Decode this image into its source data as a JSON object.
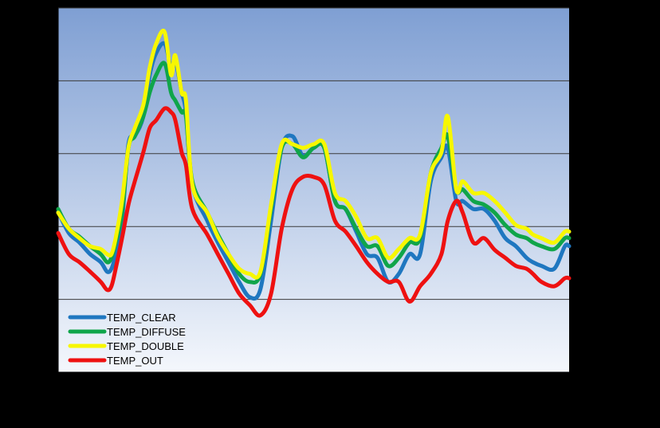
{
  "chart_data": {
    "type": "line",
    "title": "",
    "xlabel": "",
    "ylabel": "",
    "grid": true,
    "legend_position": "bottom-left",
    "ylim": [
      0,
      5
    ],
    "xlim": [
      0,
      24
    ],
    "colors": {
      "page_background": "#000000",
      "plot_background_top": "#7f9fd3",
      "plot_background_bottom": "#f4f7fc",
      "gridline": "#3b3b3b",
      "axis": "#000000"
    },
    "series": [
      {
        "name": "TEMP_CLEAR",
        "color": "#1f77c0",
        "points": [
          [
            0,
            2.2
          ],
          [
            0.5,
            1.91
          ],
          [
            1,
            1.78
          ],
          [
            1.5,
            1.62
          ],
          [
            2,
            1.51
          ],
          [
            2.3,
            1.38
          ],
          [
            2.5,
            1.42
          ],
          [
            2.7,
            1.62
          ],
          [
            3,
            2.08
          ],
          [
            3.3,
            3.13
          ],
          [
            3.6,
            3.24
          ],
          [
            4,
            3.51
          ],
          [
            4.3,
            4.08
          ],
          [
            4.6,
            4.38
          ],
          [
            5,
            4.51
          ],
          [
            5.3,
            4.18
          ],
          [
            5.5,
            4.28
          ],
          [
            5.8,
            3.84
          ],
          [
            6,
            3.57
          ],
          [
            6.3,
            2.57
          ],
          [
            7,
            2.08
          ],
          [
            7.5,
            1.78
          ],
          [
            8,
            1.51
          ],
          [
            8.5,
            1.24
          ],
          [
            9,
            1.03
          ],
          [
            9.5,
            1.14
          ],
          [
            10,
            2.08
          ],
          [
            10.5,
            3.08
          ],
          [
            11,
            3.24
          ],
          [
            11.5,
            2.97
          ],
          [
            12,
            3.08
          ],
          [
            12.5,
            3.08
          ],
          [
            13,
            2.35
          ],
          [
            13.5,
            2.24
          ],
          [
            14,
            1.93
          ],
          [
            14.5,
            1.62
          ],
          [
            15,
            1.57
          ],
          [
            15.5,
            1.24
          ],
          [
            16,
            1.35
          ],
          [
            16.5,
            1.62
          ],
          [
            17,
            1.62
          ],
          [
            17.5,
            2.62
          ],
          [
            18,
            2.95
          ],
          [
            18.3,
            3.08
          ],
          [
            18.7,
            2.35
          ],
          [
            19,
            2.35
          ],
          [
            19.5,
            2.24
          ],
          [
            20,
            2.24
          ],
          [
            20.5,
            2.08
          ],
          [
            21,
            1.84
          ],
          [
            21.5,
            1.73
          ],
          [
            22,
            1.57
          ],
          [
            22.3,
            1.51
          ],
          [
            22.7,
            1.46
          ],
          [
            23.3,
            1.42
          ],
          [
            23.8,
            1.73
          ],
          [
            24,
            1.73
          ]
        ]
      },
      {
        "name": "TEMP_DIFFUSE",
        "color": "#10a54a",
        "points": [
          [
            0,
            2.24
          ],
          [
            0.5,
            1.97
          ],
          [
            1,
            1.86
          ],
          [
            1.5,
            1.73
          ],
          [
            2,
            1.62
          ],
          [
            2.3,
            1.51
          ],
          [
            2.5,
            1.57
          ],
          [
            2.7,
            1.78
          ],
          [
            3,
            2.19
          ],
          [
            3.3,
            3.08
          ],
          [
            3.6,
            3.24
          ],
          [
            4,
            3.51
          ],
          [
            4.3,
            3.84
          ],
          [
            4.6,
            4.08
          ],
          [
            5,
            4.24
          ],
          [
            5.3,
            3.84
          ],
          [
            5.5,
            3.73
          ],
          [
            5.8,
            3.57
          ],
          [
            6,
            3.51
          ],
          [
            6.3,
            2.62
          ],
          [
            7,
            2.19
          ],
          [
            7.5,
            1.89
          ],
          [
            8,
            1.62
          ],
          [
            8.5,
            1.35
          ],
          [
            9,
            1.24
          ],
          [
            9.5,
            1.35
          ],
          [
            10,
            2.24
          ],
          [
            10.5,
            3.08
          ],
          [
            11,
            3.13
          ],
          [
            11.5,
            2.95
          ],
          [
            12,
            3.08
          ],
          [
            12.5,
            3.08
          ],
          [
            13,
            2.35
          ],
          [
            13.5,
            2.24
          ],
          [
            14,
            1.97
          ],
          [
            14.5,
            1.73
          ],
          [
            15,
            1.73
          ],
          [
            15.5,
            1.46
          ],
          [
            16,
            1.57
          ],
          [
            16.5,
            1.78
          ],
          [
            17,
            1.84
          ],
          [
            17.5,
            2.73
          ],
          [
            18,
            3.08
          ],
          [
            18.3,
            3.24
          ],
          [
            18.7,
            2.51
          ],
          [
            19,
            2.51
          ],
          [
            19.5,
            2.35
          ],
          [
            20,
            2.3
          ],
          [
            20.5,
            2.19
          ],
          [
            21,
            2.02
          ],
          [
            21.5,
            1.89
          ],
          [
            22,
            1.84
          ],
          [
            22.3,
            1.78
          ],
          [
            22.7,
            1.73
          ],
          [
            23.3,
            1.69
          ],
          [
            23.8,
            1.84
          ],
          [
            24,
            1.84
          ]
        ]
      },
      {
        "name": "TEMP_DOUBLE",
        "color": "#f7f700",
        "points": [
          [
            0,
            2.19
          ],
          [
            0.5,
            1.97
          ],
          [
            1,
            1.84
          ],
          [
            1.5,
            1.73
          ],
          [
            2,
            1.69
          ],
          [
            2.3,
            1.62
          ],
          [
            2.5,
            1.62
          ],
          [
            2.7,
            1.84
          ],
          [
            3,
            2.35
          ],
          [
            3.3,
            3.08
          ],
          [
            3.6,
            3.35
          ],
          [
            4,
            3.67
          ],
          [
            4.3,
            4.18
          ],
          [
            4.6,
            4.51
          ],
          [
            5,
            4.67
          ],
          [
            5.3,
            4.08
          ],
          [
            5.5,
            4.35
          ],
          [
            5.8,
            3.84
          ],
          [
            6,
            3.73
          ],
          [
            6.3,
            2.57
          ],
          [
            7,
            2.19
          ],
          [
            7.5,
            1.86
          ],
          [
            8,
            1.62
          ],
          [
            8.5,
            1.42
          ],
          [
            9,
            1.35
          ],
          [
            9.5,
            1.38
          ],
          [
            10,
            2.3
          ],
          [
            10.5,
            3.13
          ],
          [
            11,
            3.13
          ],
          [
            11.5,
            3.08
          ],
          [
            12,
            3.13
          ],
          [
            12.5,
            3.13
          ],
          [
            13,
            2.46
          ],
          [
            13.5,
            2.35
          ],
          [
            14,
            2.13
          ],
          [
            14.5,
            1.84
          ],
          [
            15,
            1.84
          ],
          [
            15.5,
            1.57
          ],
          [
            16,
            1.69
          ],
          [
            16.5,
            1.84
          ],
          [
            17,
            1.89
          ],
          [
            17.5,
            2.73
          ],
          [
            18,
            3.02
          ],
          [
            18.3,
            3.51
          ],
          [
            18.7,
            2.51
          ],
          [
            19,
            2.62
          ],
          [
            19.5,
            2.46
          ],
          [
            20,
            2.46
          ],
          [
            20.5,
            2.35
          ],
          [
            21,
            2.19
          ],
          [
            21.5,
            2.02
          ],
          [
            22,
            1.97
          ],
          [
            22.3,
            1.89
          ],
          [
            22.7,
            1.84
          ],
          [
            23.3,
            1.78
          ],
          [
            23.8,
            1.93
          ],
          [
            24,
            1.93
          ]
        ]
      },
      {
        "name": "TEMP_OUT",
        "color": "#ee1111",
        "points": [
          [
            0,
            1.91
          ],
          [
            0.5,
            1.62
          ],
          [
            1,
            1.51
          ],
          [
            1.5,
            1.38
          ],
          [
            2,
            1.24
          ],
          [
            2.3,
            1.13
          ],
          [
            2.5,
            1.18
          ],
          [
            2.7,
            1.42
          ],
          [
            3,
            1.84
          ],
          [
            3.3,
            2.3
          ],
          [
            3.6,
            2.62
          ],
          [
            4,
            3.02
          ],
          [
            4.3,
            3.35
          ],
          [
            4.6,
            3.46
          ],
          [
            5,
            3.62
          ],
          [
            5.3,
            3.57
          ],
          [
            5.5,
            3.46
          ],
          [
            5.8,
            3.02
          ],
          [
            6,
            2.84
          ],
          [
            6.3,
            2.24
          ],
          [
            7,
            1.89
          ],
          [
            7.5,
            1.62
          ],
          [
            8,
            1.35
          ],
          [
            8.5,
            1.08
          ],
          [
            9,
            0.92
          ],
          [
            9.5,
            0.78
          ],
          [
            10,
            1.08
          ],
          [
            10.5,
            1.97
          ],
          [
            11,
            2.51
          ],
          [
            11.5,
            2.68
          ],
          [
            12,
            2.68
          ],
          [
            12.5,
            2.57
          ],
          [
            13,
            2.08
          ],
          [
            13.5,
            1.93
          ],
          [
            14,
            1.73
          ],
          [
            14.5,
            1.51
          ],
          [
            15,
            1.35
          ],
          [
            15.5,
            1.24
          ],
          [
            16,
            1.24
          ],
          [
            16.5,
            0.97
          ],
          [
            17,
            1.18
          ],
          [
            17.5,
            1.35
          ],
          [
            18,
            1.62
          ],
          [
            18.3,
            2.08
          ],
          [
            18.7,
            2.35
          ],
          [
            19,
            2.19
          ],
          [
            19.5,
            1.78
          ],
          [
            20,
            1.84
          ],
          [
            20.5,
            1.68
          ],
          [
            21,
            1.57
          ],
          [
            21.5,
            1.46
          ],
          [
            22,
            1.42
          ],
          [
            22.3,
            1.35
          ],
          [
            22.7,
            1.24
          ],
          [
            23.3,
            1.18
          ],
          [
            23.8,
            1.29
          ],
          [
            24,
            1.29
          ]
        ]
      }
    ]
  }
}
